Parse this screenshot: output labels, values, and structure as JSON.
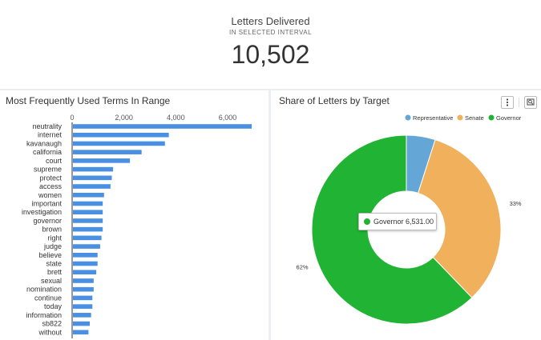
{
  "kpi": {
    "title": "Letters Delivered",
    "subtitle": "IN SELECTED INTERVAL",
    "value": "10,502"
  },
  "bar_panel": {
    "title": "Most Frequently Used Terms In Range"
  },
  "pie_panel": {
    "title": "Share of Letters by Target"
  },
  "tooltip": {
    "label": "Governor",
    "value": "6,531.00",
    "color": "#21b334"
  },
  "colors": {
    "bar": "#4a90e2",
    "representative": "#64a6d6",
    "senate": "#f0b05c",
    "governor": "#21b334"
  },
  "icons": [
    "more-vert-icon",
    "zoom-icon"
  ],
  "chart_data": [
    {
      "type": "bar",
      "orientation": "horizontal",
      "title": "Most Frequently Used Terms In Range",
      "categories": [
        "neutrality",
        "internet",
        "kavanaugh",
        "california",
        "court",
        "supreme",
        "protect",
        "access",
        "women",
        "important",
        "investigation",
        "governor",
        "brown",
        "right",
        "judge",
        "believe",
        "state",
        "brett",
        "sexual",
        "nomination",
        "continue",
        "today",
        "information",
        "sb822",
        "without"
      ],
      "values": [
        6900,
        3700,
        3550,
        2650,
        2200,
        1550,
        1500,
        1450,
        1200,
        1150,
        1150,
        1150,
        1150,
        1100,
        1050,
        950,
        950,
        900,
        800,
        800,
        750,
        750,
        700,
        650,
        600
      ],
      "xticks": [
        0,
        2000,
        4000,
        6000
      ],
      "xtick_labels": [
        "0",
        "2,000",
        "4,000",
        "6,000"
      ],
      "xlim": [
        0,
        7300
      ]
    },
    {
      "type": "pie",
      "donut": true,
      "title": "Share of Letters by Target",
      "legend": "top-right",
      "labels": [
        "Representative",
        "Senate",
        "Governor"
      ],
      "values": [
        519,
        3452,
        6531
      ],
      "percent_labels": [
        "",
        "33%",
        "62%"
      ]
    }
  ]
}
